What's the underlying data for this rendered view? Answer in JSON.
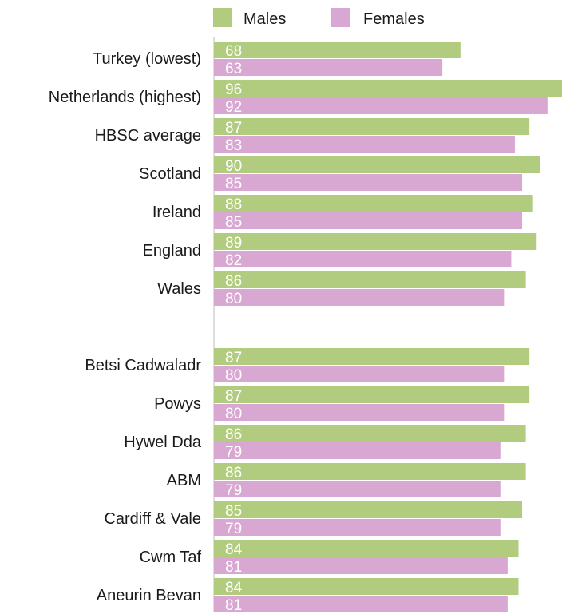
{
  "chart_data": {
    "type": "bar",
    "orientation": "horizontal",
    "legend_placement": "top",
    "grid": false,
    "xlim": [
      0,
      96
    ],
    "categories": [
      "Turkey (lowest)",
      "Netherlands (highest)",
      "HBSC average",
      "Scotland",
      "Ireland",
      "England",
      "Wales",
      "Betsi Cadwaladr",
      "Powys",
      "Hywel Dda",
      "ABM",
      "Cardiff & Vale",
      "Cwm Taf",
      "Aneurin Bevan"
    ],
    "series": [
      {
        "name": "Males",
        "color": "#b1cc7f",
        "values": [
          68,
          96,
          87,
          90,
          88,
          89,
          86,
          87,
          87,
          86,
          86,
          85,
          84,
          84
        ]
      },
      {
        "name": "Females",
        "color": "#d8a8d2",
        "values": [
          63,
          92,
          83,
          85,
          85,
          82,
          80,
          80,
          80,
          79,
          79,
          79,
          81,
          81
        ]
      }
    ]
  }
}
